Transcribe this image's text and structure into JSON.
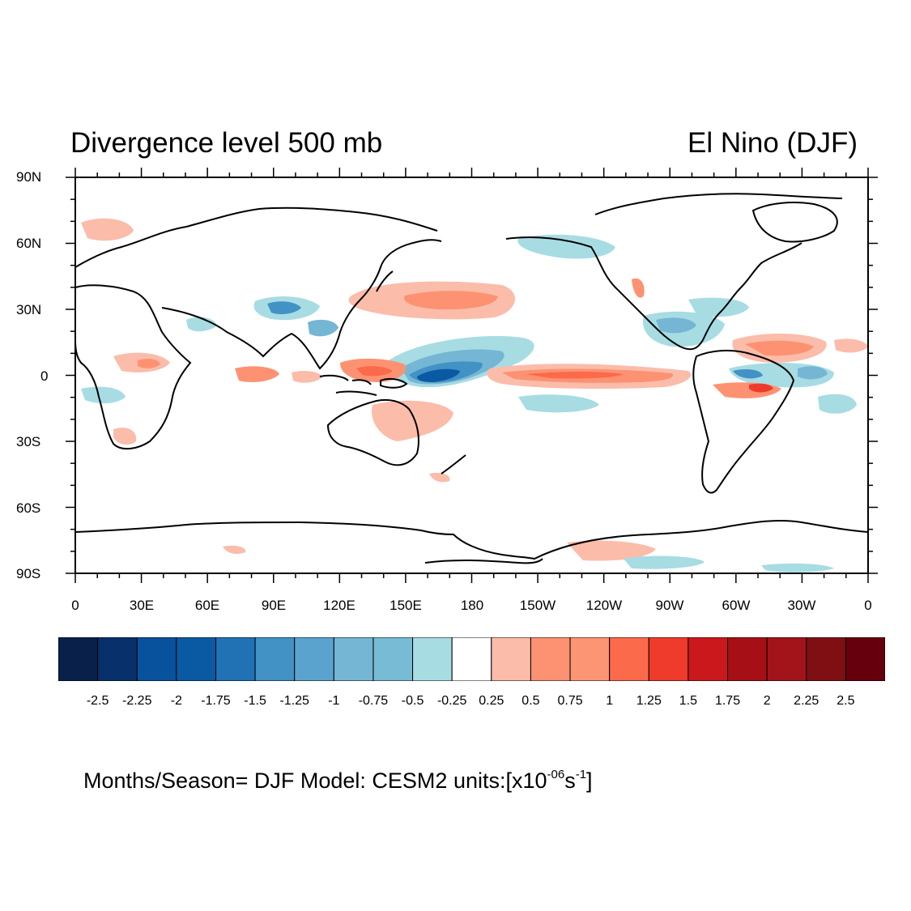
{
  "title_left": "Divergence level 500 mb",
  "title_right": "El Nino  (DJF)",
  "lat_labels": [
    "90N",
    "60N",
    "30N",
    "0",
    "30S",
    "60S",
    "90S"
  ],
  "lon_labels": [
    "0",
    "30E",
    "60E",
    "90E",
    "120E",
    "150E",
    "180",
    "150W",
    "120W",
    "90W",
    "60W",
    "30W",
    "0"
  ],
  "colorbar": {
    "colors": [
      "#08204a",
      "#08306b",
      "#08519c",
      "#0a5aa3",
      "#2171b5",
      "#4292c6",
      "#5ba3cf",
      "#74b6d4",
      "#77bbd5",
      "#a7dce3",
      "#ffffff",
      "#fbbcaa",
      "#fc9272",
      "#fc9573",
      "#fb6a4a",
      "#ef3b2c",
      "#cb181d",
      "#a50f15",
      "#a3131a",
      "#7f0f13",
      "#67000d"
    ],
    "labels": [
      "-2.5",
      "-2.25",
      "-2",
      "-1.75",
      "-1.5",
      "-1.25",
      "-1",
      "-0.75",
      "-0.5",
      "-0.25",
      "0.25",
      "0.5",
      "0.75",
      "1",
      "1.25",
      "1.5",
      "1.75",
      "2",
      "2.25",
      "2.5"
    ]
  },
  "footer": {
    "prefix": "Months/Season= DJF Model: CESM2  units:[x10",
    "exp1": "-06",
    "middle": "s",
    "exp2": "-1",
    "suffix": "]"
  }
}
